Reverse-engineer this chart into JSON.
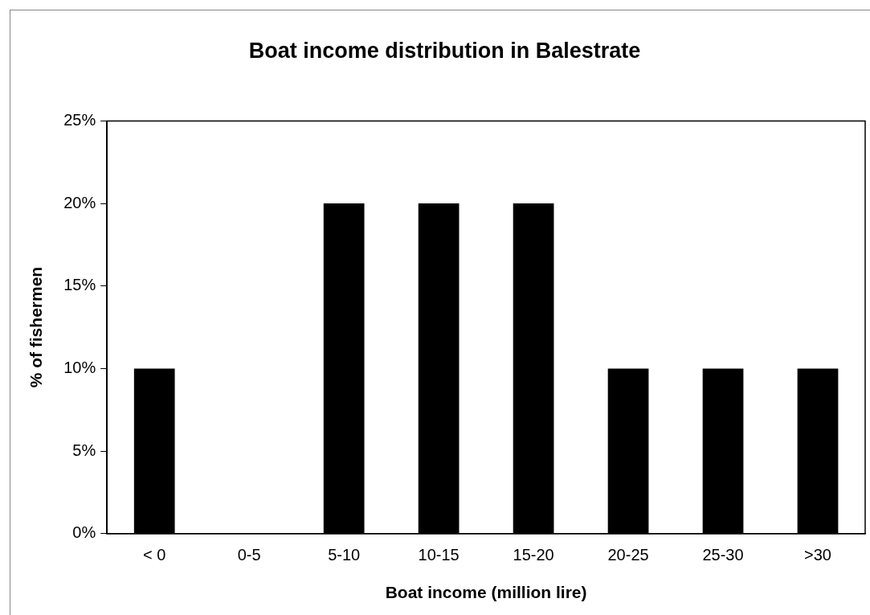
{
  "chart_data": {
    "type": "bar",
    "title": "Boat income distribution in Balestrate",
    "xlabel": "Boat income (million lire)",
    "ylabel": "% of fishermen",
    "categories": [
      "< 0",
      "0-5",
      "5-10",
      "10-15",
      "15-20",
      "20-25",
      "25-30",
      ">30"
    ],
    "values": [
      10,
      0,
      20,
      20,
      20,
      10,
      10,
      10
    ],
    "color": "#000000",
    "ylim": [
      0,
      25
    ],
    "yticks": [
      {
        "value": 0,
        "label": "0%"
      },
      {
        "value": 5,
        "label": "5%"
      },
      {
        "value": 10,
        "label": "10%"
      },
      {
        "value": 15,
        "label": "15%"
      },
      {
        "value": 20,
        "label": "20%"
      },
      {
        "value": 25,
        "label": "25%"
      }
    ],
    "grid": false,
    "legend": false
  }
}
